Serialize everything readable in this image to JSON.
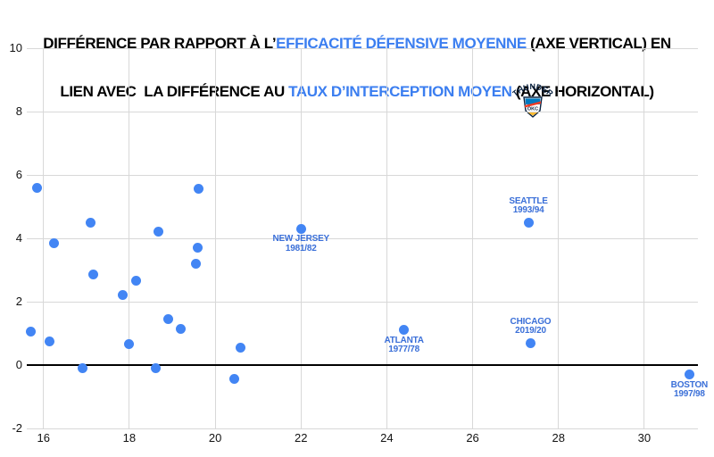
{
  "title": {
    "l1_pre": "DIFFÉRENCE PAR RAPPORT À L’",
    "l1_hl": "EFFICACITÉ DÉFENSIVE MOYENNE",
    "l1_post": " (AXE VERTICAL) EN",
    "l2_pre": "LIEN AVEC  LA DIFFÉRENCE AU ",
    "l2_hl": "TAUX D’INTERCEPTION MOYEN",
    "l2_post": " (AXE HORIZONTAL)"
  },
  "colors": {
    "title_text": "#000000",
    "title_highlight": "#3b7ef0",
    "point": "#4285f4",
    "point_label": "#3a6fd8",
    "grid": "#d8d8d8",
    "zero_axis": "#000000",
    "tick_text": "#121212",
    "background": "#ffffff",
    "logo_navy": "#0a2342",
    "logo_blue": "#007ac1",
    "logo_orange": "#ef3b24",
    "logo_yellow": "#fdbb30"
  },
  "chart_data": {
    "type": "scatter",
    "x_ticks": [
      16,
      18,
      20,
      22,
      24,
      26,
      28,
      30
    ],
    "y_ticks": [
      10,
      8,
      6,
      4,
      2,
      0,
      -2
    ],
    "x_min": 15.61,
    "x_max": 31.25,
    "y_min": -2,
    "y_max": 10,
    "zero_line_y": 0,
    "grid": true,
    "points": [
      {
        "x": 15.85,
        "y": 5.6
      },
      {
        "x": 16.25,
        "y": 3.85
      },
      {
        "x": 15.7,
        "y": 1.05
      },
      {
        "x": 16.15,
        "y": 0.75
      },
      {
        "x": 16.9,
        "y": -0.1
      },
      {
        "x": 17.1,
        "y": 4.5
      },
      {
        "x": 17.15,
        "y": 2.85
      },
      {
        "x": 17.85,
        "y": 2.2
      },
      {
        "x": 18.15,
        "y": 2.65
      },
      {
        "x": 18.0,
        "y": 0.65
      },
      {
        "x": 18.62,
        "y": -0.1
      },
      {
        "x": 18.67,
        "y": 4.2
      },
      {
        "x": 18.9,
        "y": 1.45
      },
      {
        "x": 19.2,
        "y": 1.15
      },
      {
        "x": 19.62,
        "y": 5.55
      },
      {
        "x": 19.6,
        "y": 3.7
      },
      {
        "x": 19.55,
        "y": 3.2
      },
      {
        "x": 20.45,
        "y": -0.45
      },
      {
        "x": 20.6,
        "y": 0.55
      }
    ],
    "labeled_points": [
      {
        "team": "NEW JERSEY",
        "season": "1981/82",
        "x": 22.0,
        "y": 4.3,
        "label_position": "below"
      },
      {
        "team": "ATLANTA",
        "season": "1977/78",
        "x": 24.4,
        "y": 1.1,
        "label_position": "below"
      },
      {
        "team": "SEATTLE",
        "season": "1993/94",
        "x": 27.3,
        "y": 4.5,
        "label_position": "above"
      },
      {
        "team": "CHICAGO",
        "season": "2019/20",
        "x": 27.35,
        "y": 0.7,
        "label_position": "above"
      },
      {
        "team": "BOSTON",
        "season": "1997/98",
        "x": 31.05,
        "y": -0.3,
        "label_position": "below"
      }
    ],
    "logo_point": {
      "team": "THUNDER",
      "x": 27.4,
      "y": 8.35,
      "icon": "thunder-logo",
      "logo_text_top": "THUNDER",
      "logo_text_shield": "OKC"
    }
  }
}
